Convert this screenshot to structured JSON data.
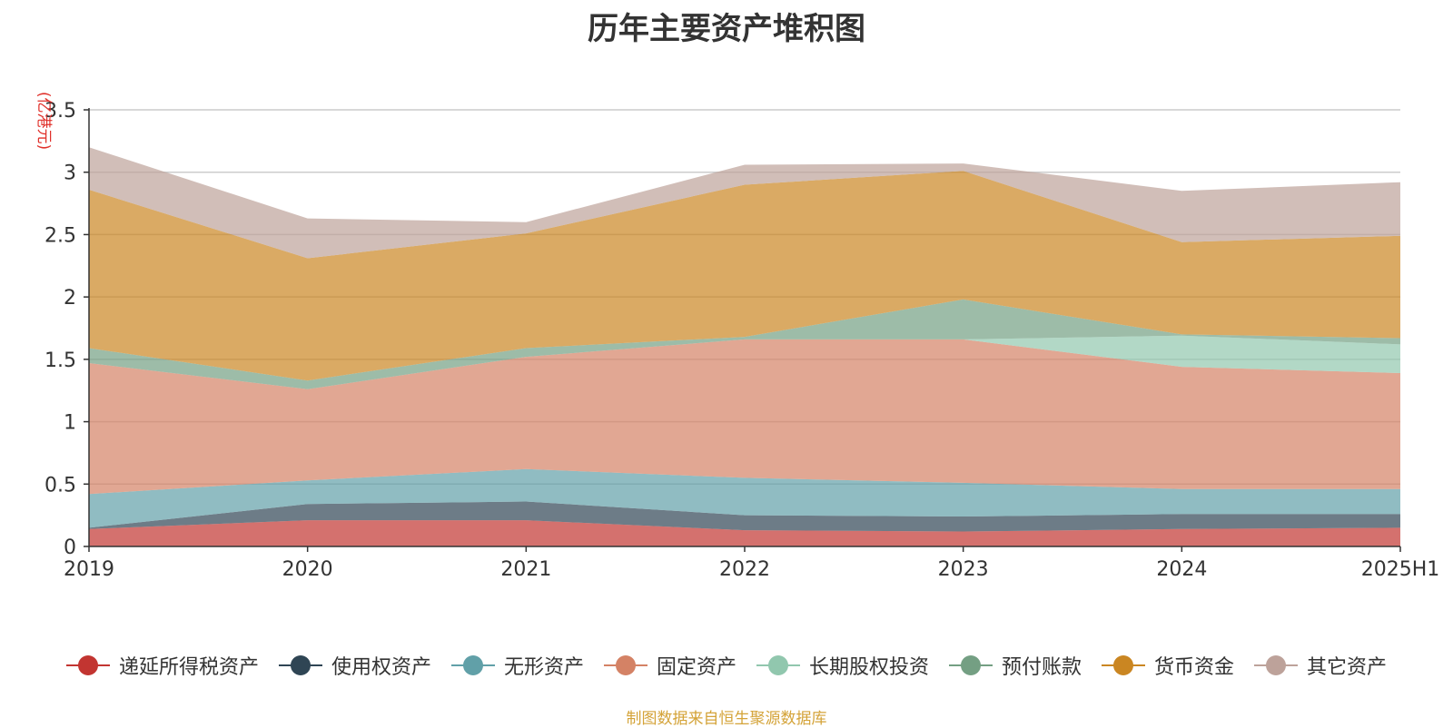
{
  "chart_data": {
    "type": "area",
    "stacked": true,
    "title": "历年主要资产堆积图",
    "ylabel": "(亿港元)",
    "xlabel": "",
    "ylim": [
      0,
      3.5
    ],
    "yticks": [
      "0",
      "0.5",
      "1",
      "1.5",
      "2",
      "2.5",
      "3",
      "3.5"
    ],
    "categories": [
      "2019",
      "2020",
      "2021",
      "2022",
      "2023",
      "2024",
      "2025H1"
    ],
    "series": [
      {
        "name": "递延所得税资产",
        "color": "#c23531",
        "values": [
          0.14,
          0.21,
          0.21,
          0.13,
          0.12,
          0.14,
          0.15
        ]
      },
      {
        "name": "使用权资产",
        "color": "#2f4554",
        "values": [
          0.01,
          0.13,
          0.15,
          0.12,
          0.12,
          0.12,
          0.11
        ]
      },
      {
        "name": "无形资产",
        "color": "#61a0a8",
        "values": [
          0.27,
          0.19,
          0.26,
          0.3,
          0.27,
          0.2,
          0.2
        ]
      },
      {
        "name": "固定资产",
        "color": "#d48265",
        "values": [
          1.05,
          0.73,
          0.9,
          1.11,
          1.15,
          0.98,
          0.93
        ]
      },
      {
        "name": "长期股权投资",
        "color": "#91c7ae",
        "values": [
          0.0,
          0.0,
          0.0,
          0.0,
          0.0,
          0.25,
          0.23
        ]
      },
      {
        "name": "预付账款",
        "color": "#749f83",
        "values": [
          0.12,
          0.07,
          0.07,
          0.02,
          0.32,
          0.01,
          0.05
        ]
      },
      {
        "name": "货币资金",
        "color": "#ca8622",
        "values": [
          1.27,
          0.98,
          0.92,
          1.22,
          1.03,
          0.74,
          0.82
        ]
      },
      {
        "name": "其它资产",
        "color": "#bda29a",
        "values": [
          0.34,
          0.32,
          0.09,
          0.16,
          0.06,
          0.41,
          0.43
        ]
      }
    ]
  },
  "source": "制图数据来自恒生聚源数据库"
}
